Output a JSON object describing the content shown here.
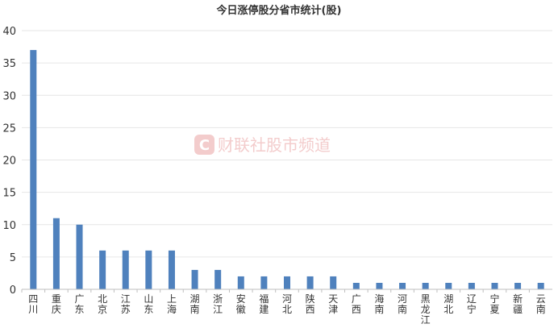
{
  "chart_data": {
    "type": "bar",
    "title": "今日涨停股分省市统计(股)",
    "xlabel": "",
    "ylabel": "",
    "categories": [
      "四川",
      "重庆",
      "广东",
      "北京",
      "江苏",
      "山东",
      "上海",
      "湖南",
      "浙江",
      "安徽",
      "福建",
      "河北",
      "陕西",
      "天津",
      "广西",
      "海南",
      "河南",
      "黑龙江",
      "湖北",
      "辽宁",
      "宁夏",
      "新疆",
      "云南"
    ],
    "values": [
      37,
      11,
      10,
      6,
      6,
      6,
      6,
      3,
      3,
      2,
      2,
      2,
      2,
      2,
      1,
      1,
      1,
      1,
      1,
      1,
      1,
      1,
      1
    ],
    "ylim": [
      0,
      40
    ],
    "yticks": [
      0,
      5,
      10,
      15,
      20,
      25,
      30,
      35,
      40
    ],
    "grid": true,
    "legend": "none",
    "bar_color": "#4f81bd",
    "grid_color": "#e6e6e6",
    "axis_color": "#bfbfbf"
  },
  "watermark": {
    "text": "财联社股市频道",
    "logo_letter": "C",
    "color": "#f2c4c4"
  }
}
